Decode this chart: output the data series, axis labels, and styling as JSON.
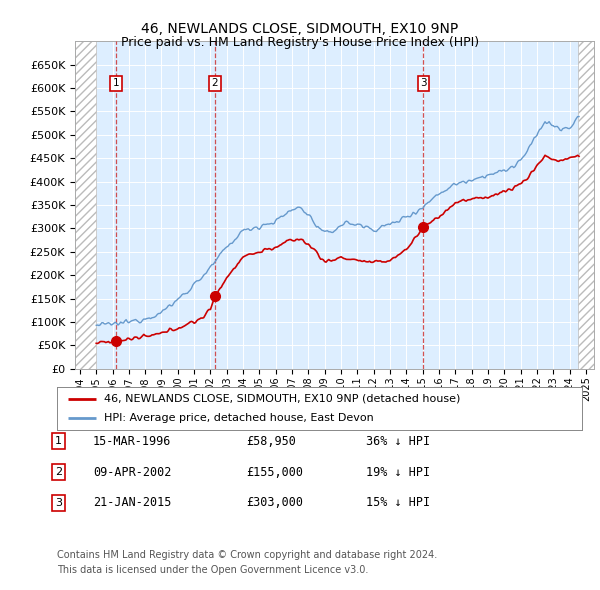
{
  "title": "46, NEWLANDS CLOSE, SIDMOUTH, EX10 9NP",
  "subtitle": "Price paid vs. HM Land Registry's House Price Index (HPI)",
  "ylim": [
    0,
    700000
  ],
  "yticks": [
    0,
    50000,
    100000,
    150000,
    200000,
    250000,
    300000,
    350000,
    400000,
    450000,
    500000,
    550000,
    600000,
    650000
  ],
  "ytick_labels": [
    "£0",
    "£50K",
    "£100K",
    "£150K",
    "£200K",
    "£250K",
    "£300K",
    "£350K",
    "£400K",
    "£450K",
    "£500K",
    "£550K",
    "£600K",
    "£650K"
  ],
  "xlim_start": 1993.7,
  "xlim_end": 2025.5,
  "background_color": "#ffffff",
  "plot_bg_color": "#ddeeff",
  "grid_color": "#ffffff",
  "sale_dates_decimal": [
    1996.2,
    2002.27,
    2015.05
  ],
  "sale_prices": [
    58950,
    155000,
    303000
  ],
  "sale_labels": [
    "1",
    "2",
    "3"
  ],
  "red_line_color": "#cc0000",
  "blue_line_color": "#6699cc",
  "legend_label_red": "46, NEWLANDS CLOSE, SIDMOUTH, EX10 9NP (detached house)",
  "legend_label_blue": "HPI: Average price, detached house, East Devon",
  "table_rows": [
    {
      "num": "1",
      "date": "15-MAR-1996",
      "price": "£58,950",
      "hpi": "36% ↓ HPI"
    },
    {
      "num": "2",
      "date": "09-APR-2002",
      "price": "£155,000",
      "hpi": "19% ↓ HPI"
    },
    {
      "num": "3",
      "date": "21-JAN-2015",
      "price": "£303,000",
      "hpi": "15% ↓ HPI"
    }
  ],
  "footer1": "Contains HM Land Registry data © Crown copyright and database right 2024.",
  "footer2": "This data is licensed under the Open Government Licence v3.0.",
  "hatch_region_end": 1995.0,
  "title_fontsize": 10,
  "subtitle_fontsize": 9
}
